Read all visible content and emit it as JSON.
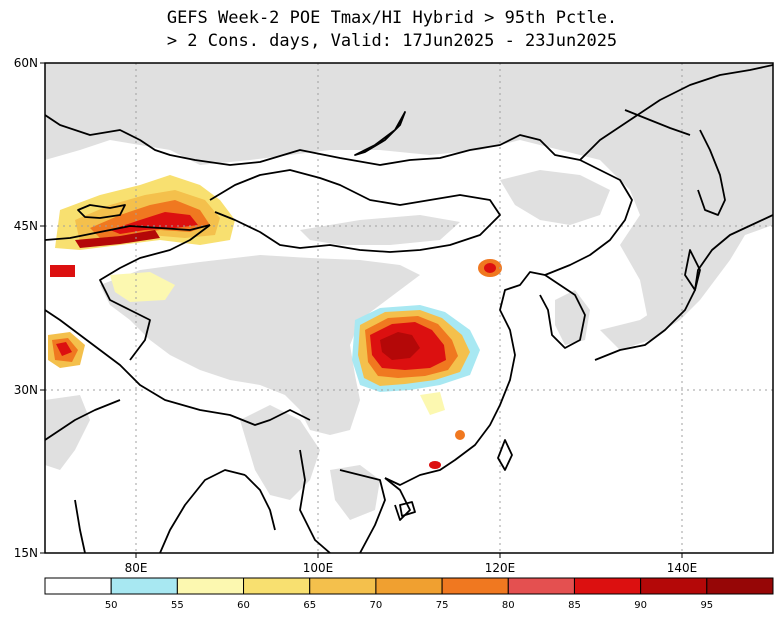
{
  "title": {
    "line1": "GEFS Week-2 POE Tmax/HI Hybrid > 95th Pctle.",
    "line2": "> 2 Cons. days, Valid: 17Jun2025 - 23Jun2025"
  },
  "axes": {
    "lat_labels": [
      "60N",
      "45N",
      "30N",
      "15N"
    ],
    "lon_labels": [
      "80E",
      "100E",
      "120E",
      "140E"
    ]
  },
  "colorbar": {
    "ticks": [
      "50",
      "55",
      "60",
      "65",
      "70",
      "75",
      "80",
      "85",
      "90",
      "95"
    ],
    "colors": [
      "#ffffff",
      "#a8e8f2",
      "#fcf8b0",
      "#f8e070",
      "#f4c04c",
      "#f0a030",
      "#f07820",
      "#e45050",
      "#dc1010",
      "#b40808",
      "#960606"
    ]
  },
  "colors": {
    "land_masked": "#e0e0e0",
    "grid": "#a0a0a0",
    "coast": "#000000"
  }
}
